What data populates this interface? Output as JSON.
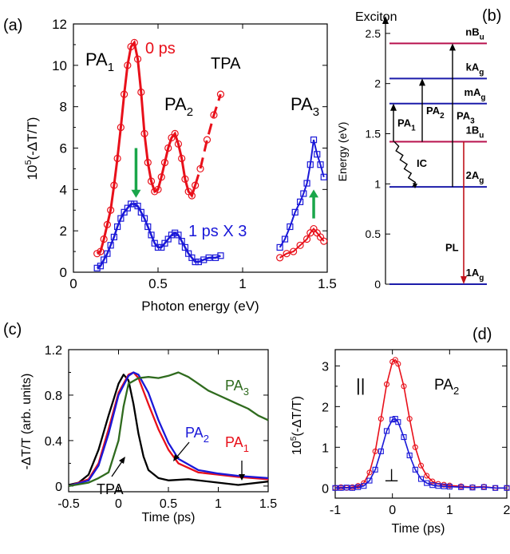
{
  "panels": [
    {
      "id": "a",
      "panel_label": "(a)",
      "chart_data": {
        "type": "scatter",
        "xlabel": "Photon energy (eV)",
        "ylabel_main": "10",
        "ylabel_exp": "5",
        "ylabel_rest": "(-ΔT/T)",
        "xlim": [
          0,
          1.5
        ],
        "ylim": [
          0,
          12
        ],
        "xticks": [
          0,
          0.5,
          1,
          1.5
        ],
        "xtick_labels": [
          "0",
          "0.5",
          "1",
          "1.5"
        ],
        "yticks": [
          0,
          2,
          4,
          6,
          8,
          10,
          12
        ],
        "ytick_labels": [
          "0",
          "2",
          "4",
          "6",
          "8",
          "10",
          "12"
        ],
        "annotations": {
          "pa1": "PA1",
          "pa2": "PA2",
          "pa3": "PA3",
          "tpa": "TPA",
          "label_0ps": "0 ps",
          "label_1ps": "1 ps X 3"
        },
        "colors": {
          "red": "#e8101a",
          "blue": "#1a18d8",
          "green": "#1aa64a"
        },
        "series": [
          {
            "name": "0 ps",
            "x": [
              0.14,
              0.16,
              0.18,
              0.2,
              0.22,
              0.24,
              0.26,
              0.28,
              0.3,
              0.32,
              0.34,
              0.36,
              0.38,
              0.4,
              0.42,
              0.44,
              0.46,
              0.48,
              0.5,
              0.52,
              0.54,
              0.56,
              0.58,
              0.6,
              0.62,
              0.64,
              0.66,
              0.68,
              0.7,
              0.72,
              0.75,
              0.79,
              0.83,
              0.87
            ],
            "y": [
              0.9,
              1.0,
              1.6,
              2.3,
              3.0,
              4.2,
              5.5,
              7.0,
              8.6,
              10.0,
              10.9,
              11.1,
              10.3,
              8.7,
              6.7,
              5.3,
              4.4,
              3.9,
              4.0,
              4.6,
              5.3,
              6.0,
              6.5,
              6.7,
              6.2,
              5.5,
              4.5,
              3.9,
              3.7,
              4.2,
              5.0,
              6.4,
              7.6,
              8.6
            ]
          },
          {
            "name": "0 ps PA3",
            "x": [
              1.22,
              1.26,
              1.3,
              1.34,
              1.38,
              1.4,
              1.42,
              1.44,
              1.46,
              1.48
            ],
            "y": [
              0.7,
              0.9,
              1.0,
              1.3,
              1.6,
              1.9,
              2.1,
              1.9,
              1.7,
              1.5
            ]
          },
          {
            "name": "1 ps X 3",
            "x": [
              0.14,
              0.16,
              0.18,
              0.2,
              0.22,
              0.24,
              0.26,
              0.28,
              0.3,
              0.32,
              0.34,
              0.36,
              0.38,
              0.4,
              0.42,
              0.44,
              0.46,
              0.48,
              0.5,
              0.52,
              0.54,
              0.56,
              0.58,
              0.6,
              0.62,
              0.64,
              0.66,
              0.68,
              0.7,
              0.72,
              0.74,
              0.77,
              0.8,
              0.84,
              0.87
            ],
            "y": [
              0.2,
              0.3,
              0.6,
              0.9,
              1.3,
              1.7,
              2.2,
              2.6,
              2.9,
              3.1,
              3.3,
              3.3,
              3.2,
              2.9,
              2.6,
              2.2,
              1.8,
              1.4,
              1.2,
              1.2,
              1.4,
              1.6,
              1.8,
              1.9,
              1.8,
              1.5,
              1.2,
              0.9,
              0.7,
              0.5,
              0.5,
              0.6,
              0.7,
              0.7,
              0.8
            ]
          },
          {
            "name": "1 ps PA3",
            "x": [
              1.22,
              1.25,
              1.28,
              1.31,
              1.34,
              1.36,
              1.38,
              1.4,
              1.42,
              1.44,
              1.46,
              1.48
            ],
            "y": [
              1.2,
              1.6,
              2.2,
              2.9,
              3.4,
              3.8,
              4.3,
              5.2,
              6.4,
              5.7,
              5.2,
              4.6
            ]
          }
        ],
        "arrows": [
          {
            "x": 0.37,
            "y_from": 6.0,
            "y_to": 3.6,
            "color": "green"
          },
          {
            "x": 1.42,
            "y_from": 2.6,
            "y_to": 4.0,
            "color": "green"
          }
        ]
      }
    },
    {
      "id": "b",
      "panel_label": "(b)",
      "chart_data": {
        "type": "diagram",
        "top_label": "Exciton",
        "ylabel": "Energy (eV)",
        "ylim": [
          0,
          2.65
        ],
        "yticks": [
          0,
          0.5,
          1,
          1.5,
          2,
          2.5
        ],
        "ytick_labels": [
          "0",
          "0.5",
          "1",
          "1.5",
          "2",
          "2.5"
        ],
        "levels": [
          {
            "name": "nBu",
            "main": "nB",
            "sub": "u",
            "energy": 2.4,
            "color": "#b8124e"
          },
          {
            "name": "kAg",
            "main": "kA",
            "sub": "g",
            "energy": 2.05,
            "color": "#1c1caa"
          },
          {
            "name": "mAg",
            "main": "mA",
            "sub": "g",
            "energy": 1.8,
            "color": "#1c1caa"
          },
          {
            "name": "1Bu",
            "main": "1B",
            "sub": "u",
            "energy": 1.42,
            "color": "#b8124e"
          },
          {
            "name": "2Ag",
            "main": "2A",
            "sub": "g",
            "energy": 0.97,
            "color": "#1c1caa"
          },
          {
            "name": "1Ag",
            "main": "1A",
            "sub": "g",
            "energy": 0.0,
            "color": "#1c1caa"
          }
        ],
        "transitions": [
          {
            "label": "PA1",
            "from": 1.42,
            "to": 1.8
          },
          {
            "label": "PA2",
            "from": 1.42,
            "to": 2.05
          },
          {
            "label": "PA3",
            "from": 0.97,
            "to": 2.4
          },
          {
            "label": "IC",
            "from": 1.42,
            "to": 0.97
          },
          {
            "label": "PL",
            "from": 1.42,
            "to": 0.0
          }
        ]
      }
    },
    {
      "id": "c",
      "panel_label": "(c)",
      "chart_data": {
        "type": "line",
        "xlabel": "Time (ps)",
        "ylabel": "-ΔT/T (arb. units)",
        "xlim": [
          -0.5,
          1.5
        ],
        "ylim": [
          -0.05,
          1.2
        ],
        "xticks": [
          -0.5,
          0,
          0.5,
          1,
          1.5
        ],
        "xtick_labels": [
          "-0.5",
          "0",
          "0.5",
          "1",
          "1.5"
        ],
        "yticks": [
          0,
          0.4,
          0.8,
          1.2
        ],
        "ytick_labels": [
          "0",
          "0.4",
          "0.8",
          "1.2"
        ],
        "series": [
          {
            "name": "TPA",
            "color": "#000000",
            "x": [
              -0.5,
              -0.4,
              -0.3,
              -0.2,
              -0.1,
              0,
              0.05,
              0.1,
              0.15,
              0.2,
              0.25,
              0.3,
              0.4,
              0.5,
              0.7,
              1.0,
              1.2,
              1.5
            ],
            "y": [
              0.01,
              0.03,
              0.1,
              0.32,
              0.62,
              0.9,
              0.98,
              0.93,
              0.72,
              0.46,
              0.26,
              0.14,
              0.07,
              0.05,
              0.06,
              0.03,
              0.01,
              0.04
            ]
          },
          {
            "name": "PA1",
            "color": "#e8101a",
            "x": [
              -0.5,
              -0.3,
              -0.2,
              -0.1,
              0,
              0.1,
              0.15,
              0.2,
              0.3,
              0.4,
              0.5,
              0.6,
              0.8,
              1.0,
              1.2,
              1.5
            ],
            "y": [
              0.0,
              0.06,
              0.2,
              0.5,
              0.82,
              0.98,
              1.0,
              0.95,
              0.72,
              0.5,
              0.32,
              0.2,
              0.12,
              0.1,
              0.08,
              0.06
            ]
          },
          {
            "name": "PA2",
            "color": "#1a18d8",
            "x": [
              -0.5,
              -0.3,
              -0.2,
              -0.1,
              0,
              0.1,
              0.15,
              0.2,
              0.3,
              0.4,
              0.5,
              0.6,
              0.8,
              1.0,
              1.2,
              1.5
            ],
            "y": [
              0.0,
              0.05,
              0.18,
              0.46,
              0.8,
              0.97,
              1.0,
              0.98,
              0.82,
              0.58,
              0.38,
              0.24,
              0.14,
              0.11,
              0.09,
              0.07
            ]
          },
          {
            "name": "PA3",
            "color": "#2f6b1e",
            "x": [
              -0.5,
              -0.3,
              -0.2,
              -0.1,
              0,
              0.05,
              0.1,
              0.2,
              0.3,
              0.4,
              0.5,
              0.6,
              0.7,
              0.8,
              0.9,
              1.0,
              1.1,
              1.2,
              1.3,
              1.4,
              1.5
            ],
            "y": [
              0.0,
              0.03,
              0.07,
              0.12,
              0.4,
              0.7,
              0.9,
              0.95,
              0.96,
              0.95,
              0.97,
              1.0,
              0.96,
              0.9,
              0.84,
              0.8,
              0.76,
              0.72,
              0.68,
              0.62,
              0.58
            ]
          }
        ],
        "annotations": {
          "pa3": "PA3",
          "pa2": "PA2",
          "pa1": "PA1",
          "tpa": "TPA"
        }
      }
    },
    {
      "id": "d",
      "panel_label": "(d)",
      "chart_data": {
        "type": "scatter",
        "xlabel": "Time (ps)",
        "ylabel_main": "10",
        "ylabel_exp": "5",
        "ylabel_rest": "(-ΔT/T)",
        "xlim": [
          -1,
          2
        ],
        "ylim": [
          -0.25,
          3.4
        ],
        "xticks": [
          -1,
          0,
          1,
          2
        ],
        "xtick_labels": [
          "-1",
          "0",
          "1",
          "2"
        ],
        "yticks": [
          0,
          1,
          2,
          3
        ],
        "ytick_labels": [
          "0",
          "1",
          "2",
          "3"
        ],
        "annotations": {
          "parallel": "||",
          "perp": "⊥",
          "pa2": "PA2"
        },
        "series": [
          {
            "name": "||",
            "color": "#e8101a",
            "x": [
              -1.0,
              -0.9,
              -0.8,
              -0.7,
              -0.6,
              -0.5,
              -0.4,
              -0.3,
              -0.2,
              -0.1,
              0.0,
              0.05,
              0.1,
              0.2,
              0.3,
              0.4,
              0.5,
              0.6,
              0.7,
              0.8,
              0.9,
              1.0,
              1.2,
              1.4,
              1.6,
              1.8,
              2.0
            ],
            "y": [
              0.0,
              0.02,
              0.0,
              0.02,
              0.05,
              0.12,
              0.38,
              0.9,
              1.7,
              2.55,
              3.1,
              3.15,
              3.05,
              2.5,
              1.7,
              1.0,
              0.55,
              0.3,
              0.16,
              0.1,
              0.08,
              0.06,
              0.04,
              0.02,
              0.03,
              0.0,
              0.0
            ]
          },
          {
            "name": "⊥",
            "color": "#1a18d8",
            "x": [
              -1.0,
              -0.9,
              -0.8,
              -0.7,
              -0.6,
              -0.5,
              -0.4,
              -0.3,
              -0.2,
              -0.1,
              0.0,
              0.05,
              0.1,
              0.2,
              0.3,
              0.4,
              0.5,
              0.6,
              0.7,
              0.8,
              0.9,
              1.0,
              1.2,
              1.4,
              1.6,
              1.8,
              2.0
            ],
            "y": [
              0.0,
              0.0,
              0.01,
              0.0,
              0.02,
              0.05,
              0.18,
              0.45,
              0.9,
              1.4,
              1.68,
              1.7,
              1.62,
              1.25,
              0.8,
              0.45,
              0.22,
              0.12,
              0.07,
              0.05,
              0.04,
              0.03,
              0.02,
              0.01,
              0.02,
              0.0,
              0.0
            ]
          }
        ]
      }
    }
  ]
}
